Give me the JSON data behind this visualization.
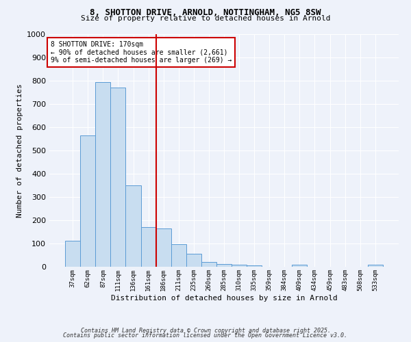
{
  "title_line1": "8, SHOTTON DRIVE, ARNOLD, NOTTINGHAM, NG5 8SW",
  "title_line2": "Size of property relative to detached houses in Arnold",
  "xlabel": "Distribution of detached houses by size in Arnold",
  "ylabel": "Number of detached properties",
  "categories": [
    "37sqm",
    "62sqm",
    "87sqm",
    "111sqm",
    "136sqm",
    "161sqm",
    "186sqm",
    "211sqm",
    "235sqm",
    "260sqm",
    "285sqm",
    "310sqm",
    "335sqm",
    "359sqm",
    "384sqm",
    "409sqm",
    "434sqm",
    "459sqm",
    "483sqm",
    "508sqm",
    "533sqm"
  ],
  "values": [
    113,
    566,
    793,
    770,
    350,
    170,
    165,
    97,
    55,
    20,
    12,
    10,
    5,
    0,
    0,
    8,
    0,
    0,
    0,
    0,
    8
  ],
  "bar_color": "#c8ddf0",
  "bar_edge_color": "#5b9bd5",
  "vline_x": 5.5,
  "vline_color": "#cc0000",
  "annotation_text": "8 SHOTTON DRIVE: 170sqm\n← 90% of detached houses are smaller (2,661)\n9% of semi-detached houses are larger (269) →",
  "annotation_box_color": "#ffffff",
  "annotation_box_edge": "#cc0000",
  "ylim": [
    0,
    1000
  ],
  "yticks": [
    0,
    100,
    200,
    300,
    400,
    500,
    600,
    700,
    800,
    900,
    1000
  ],
  "background_color": "#eef2fa",
  "grid_color": "#ffffff",
  "footer_line1": "Contains HM Land Registry data © Crown copyright and database right 2025.",
  "footer_line2": "Contains public sector information licensed under the Open Government Licence v3.0."
}
